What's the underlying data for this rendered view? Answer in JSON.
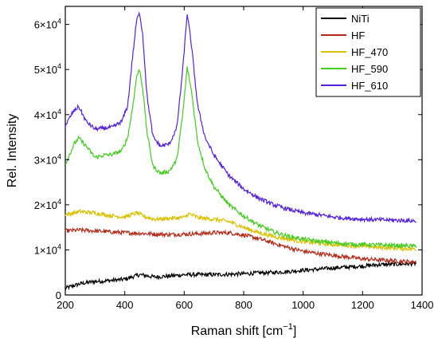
{
  "chart_data": {
    "type": "line",
    "xlabel": "Raman shift [cm",
    "xlabel_sup": "−1",
    "xlabel_tail": "]",
    "ylabel": "Rel. Intensity",
    "xlim": [
      200,
      1400
    ],
    "ylim": [
      0,
      64000
    ],
    "x_ticks": [
      200,
      400,
      600,
      800,
      1000,
      1200,
      1400
    ],
    "y_ticks": [
      {
        "value": 0,
        "mantissa": "0",
        "exp": ""
      },
      {
        "value": 10000,
        "mantissa": "1×10",
        "exp": "4"
      },
      {
        "value": 20000,
        "mantissa": "2×10",
        "exp": "4"
      },
      {
        "value": 30000,
        "mantissa": "3×10",
        "exp": "4"
      },
      {
        "value": 40000,
        "mantissa": "4×10",
        "exp": "4"
      },
      {
        "value": 50000,
        "mantissa": "5×10",
        "exp": "4"
      },
      {
        "value": 60000,
        "mantissa": "6×10",
        "exp": "4"
      }
    ],
    "legend_position": "top-right",
    "series": [
      {
        "name": "NiTi",
        "color": "#000000",
        "x": [
          200,
          250,
          300,
          350,
          400,
          450,
          500,
          550,
          600,
          650,
          700,
          750,
          800,
          850,
          900,
          950,
          1000,
          1050,
          1100,
          1150,
          1200,
          1250,
          1300,
          1350,
          1380
        ],
        "y": [
          1500,
          2500,
          3000,
          3200,
          3500,
          4500,
          4000,
          4200,
          4500,
          4500,
          4500,
          4600,
          4700,
          4900,
          5000,
          5200,
          5500,
          5700,
          6000,
          6200,
          6400,
          6700,
          6800,
          6900,
          7000
        ]
      },
      {
        "name": "HF",
        "color": "#b22a17",
        "x": [
          200,
          250,
          300,
          350,
          400,
          450,
          500,
          550,
          600,
          650,
          700,
          750,
          800,
          850,
          900,
          950,
          1000,
          1050,
          1100,
          1150,
          1200,
          1250,
          1300,
          1350,
          1380
        ],
        "y": [
          14200,
          14400,
          14200,
          14000,
          13800,
          13700,
          13500,
          13400,
          13500,
          13600,
          13800,
          13800,
          13300,
          12500,
          11500,
          10500,
          9700,
          9200,
          8800,
          8400,
          8000,
          7800,
          7600,
          7400,
          7300
        ]
      },
      {
        "name": "HF_470",
        "color": "#d9c000",
        "x": [
          200,
          250,
          300,
          350,
          400,
          440,
          470,
          500,
          550,
          600,
          615,
          650,
          700,
          750,
          800,
          850,
          900,
          950,
          1000,
          1050,
          1100,
          1150,
          1200,
          1250,
          1300,
          1350,
          1380
        ],
        "y": [
          17800,
          18500,
          18200,
          17600,
          17300,
          18200,
          17300,
          16800,
          17000,
          17200,
          18000,
          17100,
          16800,
          16300,
          15000,
          13800,
          13000,
          12400,
          11800,
          11500,
          11200,
          11000,
          10800,
          10600,
          10400,
          10300,
          10200
        ]
      },
      {
        "name": "HF_590",
        "color": "#44cc22",
        "x": [
          200,
          230,
          245,
          270,
          300,
          330,
          360,
          390,
          410,
          425,
          440,
          450,
          460,
          475,
          495,
          520,
          550,
          575,
          595,
          610,
          625,
          645,
          670,
          700,
          750,
          800,
          850,
          900,
          950,
          1000,
          1050,
          1100,
          1150,
          1200,
          1250,
          1300,
          1350,
          1380
        ],
        "y": [
          29000,
          33500,
          34800,
          33000,
          30500,
          31000,
          31200,
          32000,
          35000,
          41000,
          48500,
          50000,
          46000,
          36000,
          28500,
          27000,
          27500,
          30000,
          40000,
          50500,
          45000,
          34000,
          28000,
          24000,
          20000,
          17500,
          15500,
          14000,
          13000,
          12400,
          11900,
          11600,
          11300,
          11200,
          11100,
          11000,
          10900,
          10800
        ]
      },
      {
        "name": "HF_610",
        "color": "#5522dd",
        "x": [
          200,
          225,
          245,
          270,
          300,
          330,
          360,
          390,
          410,
          425,
          440,
          450,
          460,
          475,
          495,
          520,
          550,
          575,
          595,
          610,
          625,
          645,
          670,
          700,
          750,
          800,
          850,
          900,
          950,
          1000,
          1050,
          1100,
          1150,
          1200,
          1250,
          1300,
          1350,
          1380
        ],
        "y": [
          37500,
          40500,
          41800,
          38500,
          36800,
          37000,
          37200,
          38500,
          42000,
          52000,
          61000,
          62500,
          58000,
          44000,
          35000,
          33000,
          33500,
          37000,
          50000,
          62500,
          55000,
          42000,
          35000,
          31000,
          26500,
          23500,
          21500,
          20000,
          19000,
          18200,
          17800,
          17300,
          17000,
          16800,
          16700,
          16600,
          16500,
          16400
        ]
      }
    ]
  }
}
